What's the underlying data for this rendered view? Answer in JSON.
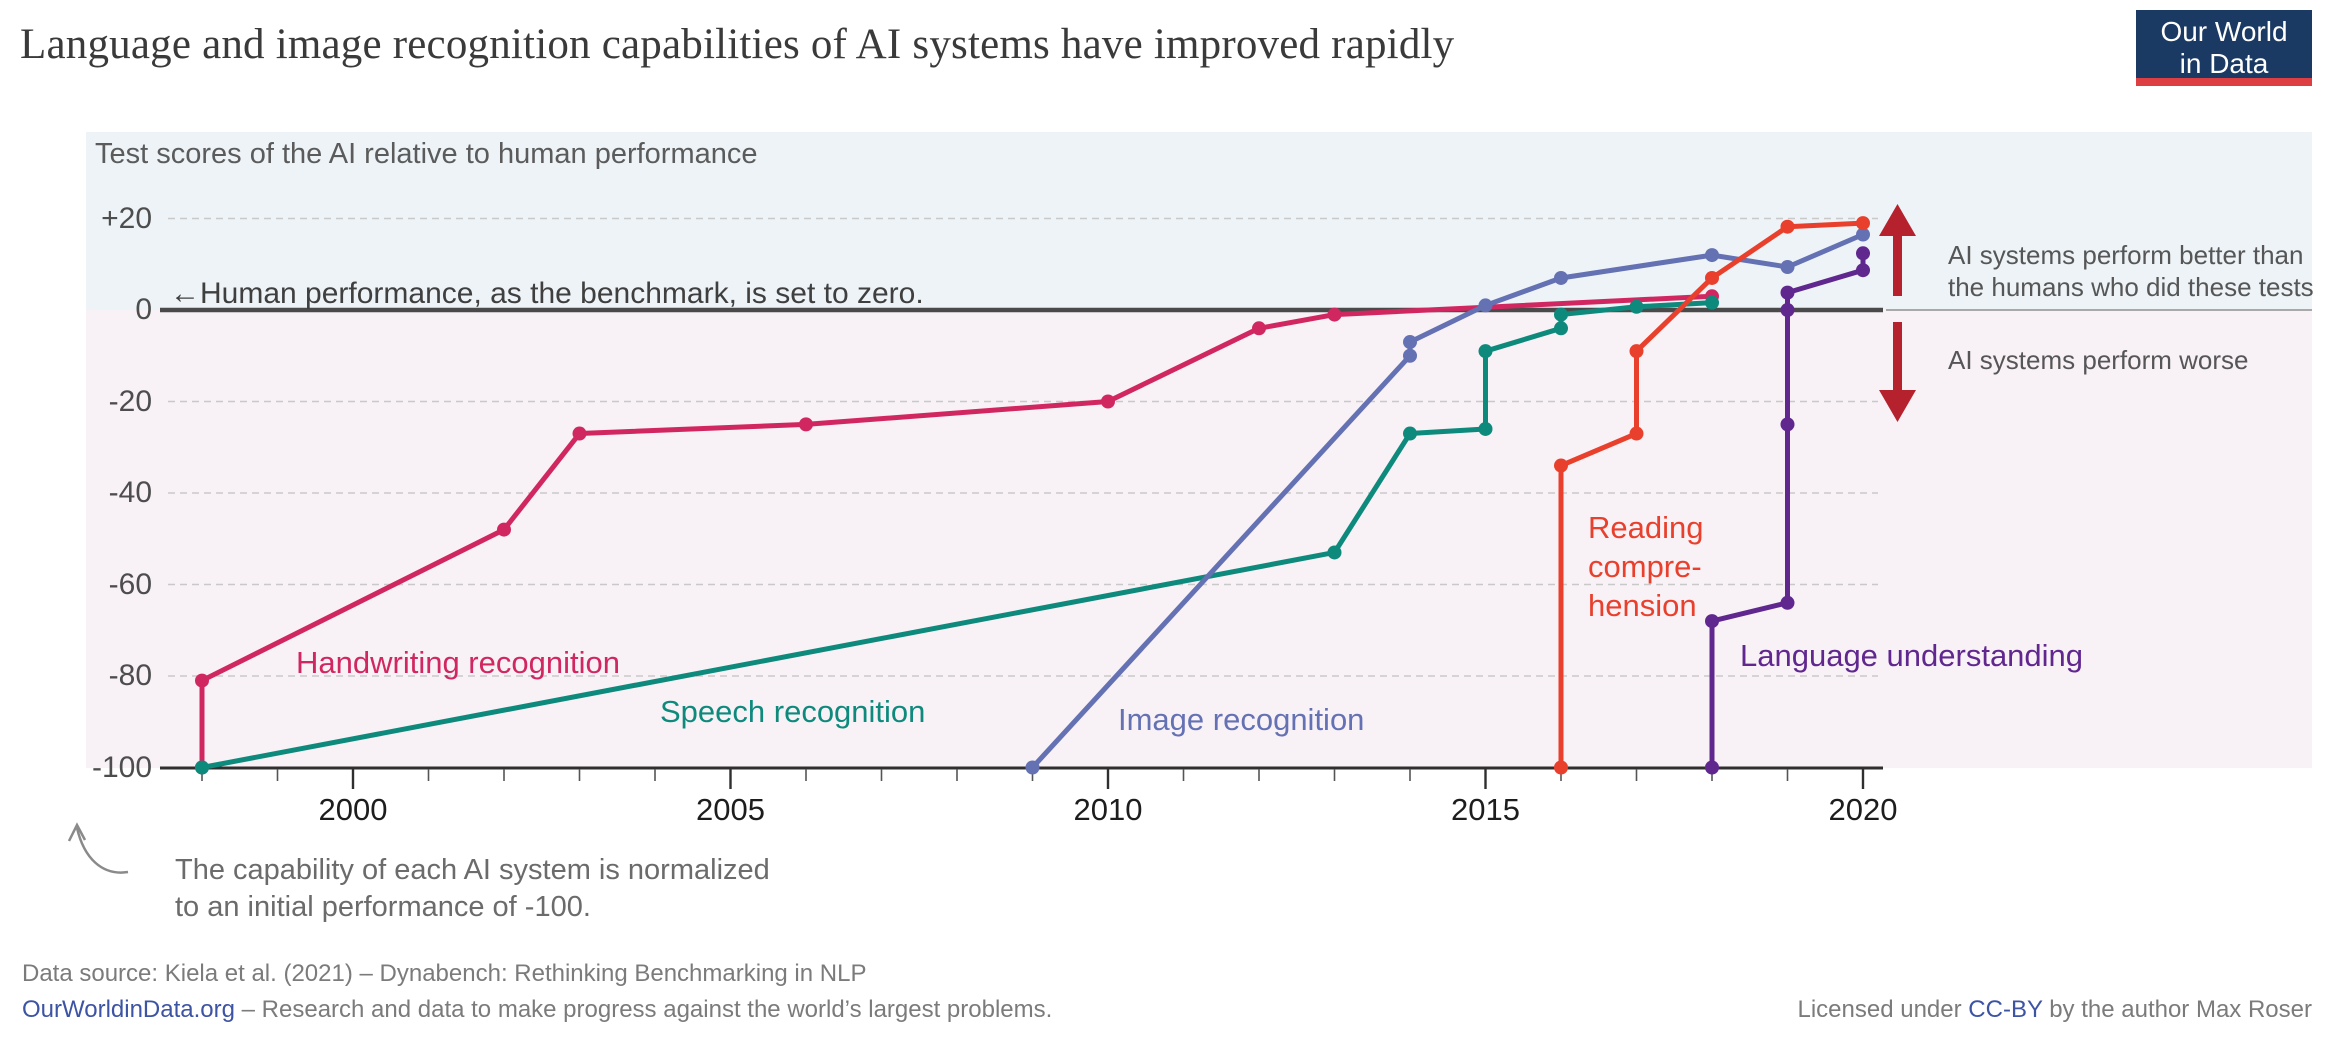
{
  "title": "Language and image recognition capabilities of AI systems have improved rapidly",
  "logo": {
    "line1": "Our World",
    "line2": "in Data"
  },
  "subtitle": "Test scores of the AI relative to human performance",
  "zero_note": "←Human performance, as the benchmark, is set to zero.",
  "bottom_note": "The capability of each AI system is normalized\nto an initial performance of -100.",
  "annotations": {
    "better": "AI systems perform better than\nthe humans who did these tests",
    "worse": "AI systems perform worse",
    "arrow_color": "#b5222d"
  },
  "footer": {
    "line1": "Data source: Kiela et al. (2021) – Dynabench: Rethinking Benchmarking in NLP",
    "link": "OurWorldinData.org",
    "line2_rest": " – Research and data to make progress against the world’s largest problems.",
    "license_pre": "Licensed under ",
    "license_link": "CC-BY",
    "license_post": " by the author Max Roser"
  },
  "chart_data": {
    "type": "line",
    "title": "Test scores of the AI relative to human performance",
    "xlabel": "",
    "ylabel": "",
    "xlim": [
      1997.5,
      2024
    ],
    "ylim": [
      -100,
      20
    ],
    "grid": "horizontal-dashed",
    "legend_position": "inline-labels",
    "x_ticks_labeled": [
      2000,
      2005,
      2010,
      2015,
      2020
    ],
    "x_ticks_minor": [
      1998,
      1999,
      2000,
      2001,
      2002,
      2003,
      2004,
      2005,
      2006,
      2007,
      2008,
      2009,
      2010,
      2011,
      2012,
      2013,
      2014,
      2015,
      2016,
      2017,
      2018,
      2019,
      2020
    ],
    "y_ticks": [
      {
        "label": "+20",
        "value": 20
      },
      {
        "label": "0",
        "value": 0
      },
      {
        "label": "-20",
        "value": -20
      },
      {
        "label": "-40",
        "value": -40
      },
      {
        "label": "-60",
        "value": -60
      },
      {
        "label": "-80",
        "value": -80
      },
      {
        "label": "-100",
        "value": -100
      }
    ],
    "series": [
      {
        "name": "Handwriting recognition",
        "color": "#d12760",
        "label": "Handwriting recognition",
        "points": [
          [
            1998,
            -100
          ],
          [
            1998,
            -81
          ],
          [
            2002,
            -48
          ],
          [
            2003,
            -27
          ],
          [
            2006,
            -25
          ],
          [
            2010,
            -20
          ],
          [
            2012,
            -4
          ],
          [
            2013,
            -1
          ],
          [
            2018,
            3
          ]
        ]
      },
      {
        "name": "Speech recognition",
        "color": "#0e8a7d",
        "label": "Speech recognition",
        "points": [
          [
            1998,
            -100
          ],
          [
            2013,
            -53
          ],
          [
            2014,
            -27
          ],
          [
            2015,
            -26
          ],
          [
            2015,
            -9
          ],
          [
            2016,
            -4
          ],
          [
            2016,
            -1
          ],
          [
            2017,
            0.7
          ],
          [
            2018,
            1.6
          ]
        ]
      },
      {
        "name": "Image recognition",
        "color": "#6471b3",
        "label": "Image recognition",
        "points": [
          [
            2009,
            -100
          ],
          [
            2014,
            -10
          ],
          [
            2014,
            -7
          ],
          [
            2015,
            1
          ],
          [
            2016,
            7
          ],
          [
            2018,
            12
          ],
          [
            2019,
            9.4
          ],
          [
            2020,
            16.5
          ]
        ]
      },
      {
        "name": "Reading comprehension",
        "color": "#e8402c",
        "label": "Reading\ncompre-\nhension",
        "points": [
          [
            2016,
            -100
          ],
          [
            2016,
            -34
          ],
          [
            2017,
            -27
          ],
          [
            2017,
            -9
          ],
          [
            2018,
            7
          ],
          [
            2019,
            18.2
          ],
          [
            2020,
            19
          ]
        ]
      },
      {
        "name": "Language understanding",
        "color": "#60278f",
        "label": "Language understanding",
        "points": [
          [
            2018,
            -100
          ],
          [
            2018,
            -68
          ],
          [
            2019,
            -64
          ],
          [
            2019,
            -25
          ],
          [
            2019,
            0
          ],
          [
            2019,
            3.8
          ],
          [
            2020,
            8.7
          ],
          [
            2020,
            12.4
          ]
        ]
      }
    ]
  }
}
